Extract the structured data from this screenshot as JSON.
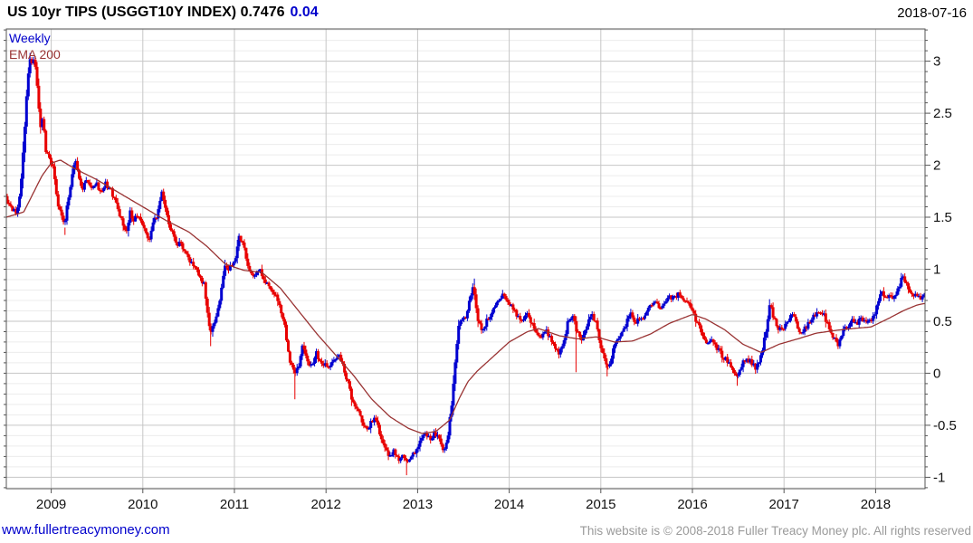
{
  "header": {
    "title": "US 10yr TIPS (USGGT10Y INDEX) 0.7476",
    "change": "0.04",
    "date": "2018-07-16"
  },
  "legend": {
    "timeframe": "Weekly",
    "overlay": "EMA 200"
  },
  "footer": {
    "site": "www.fullertreacymoney.com",
    "copyright": "This website is © 2008-2018 Fuller Treacy Money plc. All rights reserved"
  },
  "colors": {
    "up": "#0000d0",
    "down": "#e80000",
    "ema": "#993333",
    "grid_minor": "#ececec",
    "grid_major": "#c6c6c6",
    "year_line": "#c6c6c6",
    "frame": "#555555",
    "axis_text": "#111111",
    "title_text": "#000000",
    "change_text": "#0000cc",
    "link_text": "#0000cc",
    "copyright_text": "#9a9a9a"
  },
  "chart_data": {
    "type": "bar",
    "subtype": "weekly-candlestick-with-ema",
    "title": "US 10yr TIPS (USGGT10Y INDEX)",
    "last_price": 0.7476,
    "change": 0.04,
    "x_range": [
      2008.51,
      2018.54
    ],
    "y_range": [
      -1.11,
      3.31
    ],
    "y_ticks_major": [
      -1,
      -0.5,
      0,
      0.5,
      1,
      1.5,
      2,
      2.5,
      3
    ],
    "y_minor_step": 0.1,
    "x_ticks_years": [
      2009,
      2010,
      2011,
      2012,
      2013,
      2014,
      2015,
      2016,
      2017,
      2018
    ],
    "legend_position": "top-left",
    "grid": "on",
    "price_keyframes": [
      [
        2008.51,
        1.7
      ],
      [
        2008.55,
        1.62
      ],
      [
        2008.6,
        1.57
      ],
      [
        2008.64,
        1.55
      ],
      [
        2008.67,
        1.72
      ],
      [
        2008.71,
        2.2
      ],
      [
        2008.74,
        2.65
      ],
      [
        2008.77,
        3.02
      ],
      [
        2008.8,
        2.95
      ],
      [
        2008.83,
        3.03
      ],
      [
        2008.86,
        2.7
      ],
      [
        2008.89,
        2.35
      ],
      [
        2008.92,
        2.48
      ],
      [
        2008.95,
        2.15
      ],
      [
        2009.0,
        2.05
      ],
      [
        2009.04,
        1.93
      ],
      [
        2009.08,
        1.62
      ],
      [
        2009.12,
        1.55
      ],
      [
        2009.15,
        1.4
      ],
      [
        2009.19,
        1.65
      ],
      [
        2009.23,
        1.85
      ],
      [
        2009.27,
        2.08
      ],
      [
        2009.31,
        1.88
      ],
      [
        2009.35,
        1.78
      ],
      [
        2009.4,
        1.86
      ],
      [
        2009.45,
        1.78
      ],
      [
        2009.5,
        1.83
      ],
      [
        2009.55,
        1.74
      ],
      [
        2009.6,
        1.82
      ],
      [
        2009.65,
        1.78
      ],
      [
        2009.7,
        1.67
      ],
      [
        2009.75,
        1.55
      ],
      [
        2009.8,
        1.42
      ],
      [
        2009.83,
        1.35
      ],
      [
        2009.87,
        1.55
      ],
      [
        2009.91,
        1.47
      ],
      [
        2009.95,
        1.52
      ],
      [
        2010.0,
        1.46
      ],
      [
        2010.05,
        1.33
      ],
      [
        2010.08,
        1.26
      ],
      [
        2010.12,
        1.45
      ],
      [
        2010.17,
        1.52
      ],
      [
        2010.21,
        1.75
      ],
      [
        2010.25,
        1.6
      ],
      [
        2010.29,
        1.45
      ],
      [
        2010.33,
        1.35
      ],
      [
        2010.38,
        1.22
      ],
      [
        2010.42,
        1.28
      ],
      [
        2010.46,
        1.18
      ],
      [
        2010.5,
        1.12
      ],
      [
        2010.55,
        1.05
      ],
      [
        2010.6,
        1.0
      ],
      [
        2010.64,
        0.92
      ],
      [
        2010.68,
        0.85
      ],
      [
        2010.71,
        0.6
      ],
      [
        2010.75,
        0.4
      ],
      [
        2010.78,
        0.47
      ],
      [
        2010.82,
        0.55
      ],
      [
        2010.86,
        0.75
      ],
      [
        2010.9,
        1.05
      ],
      [
        2010.94,
        0.98
      ],
      [
        2010.98,
        1.05
      ],
      [
        2011.02,
        1.12
      ],
      [
        2011.06,
        1.3
      ],
      [
        2011.1,
        1.25
      ],
      [
        2011.14,
        1.1
      ],
      [
        2011.18,
        0.98
      ],
      [
        2011.23,
        0.93
      ],
      [
        2011.28,
        1.0
      ],
      [
        2011.33,
        0.9
      ],
      [
        2011.38,
        0.85
      ],
      [
        2011.43,
        0.8
      ],
      [
        2011.48,
        0.7
      ],
      [
        2011.52,
        0.58
      ],
      [
        2011.56,
        0.45
      ],
      [
        2011.6,
        0.18
      ],
      [
        2011.64,
        0.05
      ],
      [
        2011.68,
        0.02
      ],
      [
        2011.72,
        0.1
      ],
      [
        2011.75,
        0.27
      ],
      [
        2011.79,
        0.15
      ],
      [
        2011.83,
        0.05
      ],
      [
        2011.87,
        0.12
      ],
      [
        2011.91,
        0.2
      ],
      [
        2011.95,
        0.08
      ],
      [
        2012.0,
        0.1
      ],
      [
        2012.05,
        0.05
      ],
      [
        2012.1,
        0.12
      ],
      [
        2012.15,
        0.2
      ],
      [
        2012.2,
        0.05
      ],
      [
        2012.25,
        -0.1
      ],
      [
        2012.3,
        -0.28
      ],
      [
        2012.35,
        -0.35
      ],
      [
        2012.4,
        -0.45
      ],
      [
        2012.45,
        -0.55
      ],
      [
        2012.5,
        -0.48
      ],
      [
        2012.55,
        -0.42
      ],
      [
        2012.6,
        -0.6
      ],
      [
        2012.65,
        -0.72
      ],
      [
        2012.7,
        -0.82
      ],
      [
        2012.75,
        -0.75
      ],
      [
        2012.8,
        -0.85
      ],
      [
        2012.85,
        -0.78
      ],
      [
        2012.9,
        -0.88
      ],
      [
        2012.95,
        -0.8
      ],
      [
        2013.0,
        -0.72
      ],
      [
        2013.05,
        -0.62
      ],
      [
        2013.1,
        -0.58
      ],
      [
        2013.15,
        -0.62
      ],
      [
        2013.2,
        -0.58
      ],
      [
        2013.25,
        -0.63
      ],
      [
        2013.3,
        -0.75
      ],
      [
        2013.34,
        -0.6
      ],
      [
        2013.38,
        -0.3
      ],
      [
        2013.42,
        0.1
      ],
      [
        2013.46,
        0.45
      ],
      [
        2013.5,
        0.55
      ],
      [
        2013.54,
        0.5
      ],
      [
        2013.58,
        0.72
      ],
      [
        2013.62,
        0.85
      ],
      [
        2013.65,
        0.6
      ],
      [
        2013.68,
        0.48
      ],
      [
        2013.72,
        0.4
      ],
      [
        2013.76,
        0.5
      ],
      [
        2013.8,
        0.55
      ],
      [
        2013.85,
        0.62
      ],
      [
        2013.9,
        0.72
      ],
      [
        2013.95,
        0.76
      ],
      [
        2014.0,
        0.7
      ],
      [
        2014.05,
        0.62
      ],
      [
        2014.1,
        0.55
      ],
      [
        2014.15,
        0.52
      ],
      [
        2014.2,
        0.57
      ],
      [
        2014.25,
        0.5
      ],
      [
        2014.3,
        0.4
      ],
      [
        2014.35,
        0.33
      ],
      [
        2014.4,
        0.42
      ],
      [
        2014.45,
        0.35
      ],
      [
        2014.5,
        0.25
      ],
      [
        2014.55,
        0.18
      ],
      [
        2014.6,
        0.28
      ],
      [
        2014.65,
        0.5
      ],
      [
        2014.7,
        0.56
      ],
      [
        2014.75,
        0.4
      ],
      [
        2014.8,
        0.33
      ],
      [
        2014.85,
        0.42
      ],
      [
        2014.9,
        0.58
      ],
      [
        2014.95,
        0.5
      ],
      [
        2015.0,
        0.3
      ],
      [
        2015.05,
        0.12
      ],
      [
        2015.1,
        0.06
      ],
      [
        2015.15,
        0.25
      ],
      [
        2015.2,
        0.35
      ],
      [
        2015.28,
        0.45
      ],
      [
        2015.33,
        0.6
      ],
      [
        2015.38,
        0.48
      ],
      [
        2015.43,
        0.52
      ],
      [
        2015.48,
        0.55
      ],
      [
        2015.55,
        0.65
      ],
      [
        2015.6,
        0.7
      ],
      [
        2015.65,
        0.62
      ],
      [
        2015.7,
        0.68
      ],
      [
        2015.75,
        0.75
      ],
      [
        2015.8,
        0.72
      ],
      [
        2015.85,
        0.76
      ],
      [
        2015.9,
        0.72
      ],
      [
        2015.95,
        0.68
      ],
      [
        2016.0,
        0.62
      ],
      [
        2016.05,
        0.5
      ],
      [
        2016.1,
        0.42
      ],
      [
        2016.15,
        0.3
      ],
      [
        2016.2,
        0.32
      ],
      [
        2016.25,
        0.28
      ],
      [
        2016.3,
        0.22
      ],
      [
        2016.35,
        0.15
      ],
      [
        2016.4,
        0.12
      ],
      [
        2016.45,
        0.02
      ],
      [
        2016.5,
        -0.02
      ],
      [
        2016.55,
        0.08
      ],
      [
        2016.6,
        0.15
      ],
      [
        2016.65,
        0.1
      ],
      [
        2016.7,
        0.05
      ],
      [
        2016.74,
        0.12
      ],
      [
        2016.78,
        0.25
      ],
      [
        2016.82,
        0.45
      ],
      [
        2016.86,
        0.68
      ],
      [
        2016.9,
        0.52
      ],
      [
        2016.94,
        0.44
      ],
      [
        2016.98,
        0.42
      ],
      [
        2017.02,
        0.46
      ],
      [
        2017.06,
        0.5
      ],
      [
        2017.1,
        0.58
      ],
      [
        2017.14,
        0.48
      ],
      [
        2017.18,
        0.38
      ],
      [
        2017.22,
        0.42
      ],
      [
        2017.26,
        0.45
      ],
      [
        2017.31,
        0.52
      ],
      [
        2017.35,
        0.56
      ],
      [
        2017.4,
        0.6
      ],
      [
        2017.45,
        0.55
      ],
      [
        2017.5,
        0.45
      ],
      [
        2017.55,
        0.35
      ],
      [
        2017.6,
        0.28
      ],
      [
        2017.65,
        0.4
      ],
      [
        2017.7,
        0.45
      ],
      [
        2017.75,
        0.5
      ],
      [
        2017.8,
        0.47
      ],
      [
        2017.85,
        0.52
      ],
      [
        2017.9,
        0.48
      ],
      [
        2017.95,
        0.5
      ],
      [
        2018.0,
        0.56
      ],
      [
        2018.04,
        0.7
      ],
      [
        2018.08,
        0.78
      ],
      [
        2018.12,
        0.72
      ],
      [
        2018.16,
        0.74
      ],
      [
        2018.2,
        0.7
      ],
      [
        2018.25,
        0.8
      ],
      [
        2018.3,
        0.92
      ],
      [
        2018.34,
        0.88
      ],
      [
        2018.38,
        0.78
      ],
      [
        2018.42,
        0.72
      ],
      [
        2018.46,
        0.76
      ],
      [
        2018.5,
        0.72
      ],
      [
        2018.53,
        0.75
      ]
    ],
    "ema_keyframes": [
      [
        2008.51,
        1.5
      ],
      [
        2008.7,
        1.55
      ],
      [
        2008.9,
        1.9
      ],
      [
        2009.0,
        2.02
      ],
      [
        2009.1,
        2.05
      ],
      [
        2009.25,
        1.97
      ],
      [
        2009.5,
        1.86
      ],
      [
        2009.75,
        1.73
      ],
      [
        2010.0,
        1.6
      ],
      [
        2010.25,
        1.47
      ],
      [
        2010.5,
        1.36
      ],
      [
        2010.7,
        1.22
      ],
      [
        2010.9,
        1.05
      ],
      [
        2011.1,
        0.99
      ],
      [
        2011.3,
        0.97
      ],
      [
        2011.5,
        0.82
      ],
      [
        2011.7,
        0.6
      ],
      [
        2011.9,
        0.38
      ],
      [
        2012.1,
        0.18
      ],
      [
        2012.3,
        -0.02
      ],
      [
        2012.5,
        -0.25
      ],
      [
        2012.7,
        -0.42
      ],
      [
        2012.9,
        -0.53
      ],
      [
        2013.05,
        -0.58
      ],
      [
        2013.2,
        -0.56
      ],
      [
        2013.35,
        -0.45
      ],
      [
        2013.45,
        -0.25
      ],
      [
        2013.55,
        -0.08
      ],
      [
        2013.65,
        0.02
      ],
      [
        2013.8,
        0.14
      ],
      [
        2014.0,
        0.3
      ],
      [
        2014.2,
        0.4
      ],
      [
        2014.32,
        0.43
      ],
      [
        2014.55,
        0.36
      ],
      [
        2014.75,
        0.33
      ],
      [
        2014.95,
        0.35
      ],
      [
        2015.15,
        0.3
      ],
      [
        2015.35,
        0.31
      ],
      [
        2015.55,
        0.38
      ],
      [
        2015.75,
        0.48
      ],
      [
        2016.0,
        0.565
      ],
      [
        2016.15,
        0.52
      ],
      [
        2016.35,
        0.42
      ],
      [
        2016.55,
        0.28
      ],
      [
        2016.75,
        0.2
      ],
      [
        2016.95,
        0.28
      ],
      [
        2017.15,
        0.33
      ],
      [
        2017.35,
        0.385
      ],
      [
        2017.55,
        0.41
      ],
      [
        2017.75,
        0.43
      ],
      [
        2017.95,
        0.445
      ],
      [
        2018.15,
        0.53
      ],
      [
        2018.3,
        0.6
      ],
      [
        2018.45,
        0.655
      ],
      [
        2018.53,
        0.67
      ]
    ],
    "extra_wicks": [
      [
        2009.15,
        1.33
      ],
      [
        2010.74,
        0.26
      ],
      [
        2011.66,
        -0.25
      ],
      [
        2012.88,
        -0.98
      ],
      [
        2013.62,
        0.91
      ],
      [
        2014.73,
        0.01
      ],
      [
        2015.07,
        -0.03
      ],
      [
        2016.49,
        -0.12
      ],
      [
        2018.3,
        0.95
      ]
    ]
  }
}
